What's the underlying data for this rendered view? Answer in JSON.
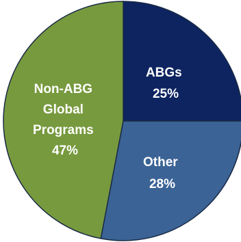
{
  "chart_data": {
    "type": "pie",
    "title": "",
    "slices": [
      {
        "label": "ABGs",
        "value": 25,
        "value_label": "25%",
        "color": "#0d2460"
      },
      {
        "label": "Other",
        "value": 28,
        "value_label": "28%",
        "color": "#3b6395"
      },
      {
        "label": "Non-ABG Global Programs",
        "value": 47,
        "value_label": "47%",
        "color": "#779a3e"
      }
    ],
    "legend": "none",
    "start_angle": "12 o'clock",
    "direction": "clockwise"
  }
}
